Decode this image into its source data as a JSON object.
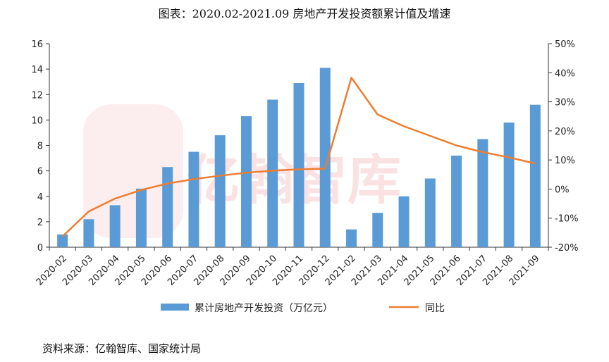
{
  "title": "图表：2020.02-2021.09 房地产开发投资额累计值及增速",
  "source": "资料来源：亿翰智库、国家统计局",
  "watermark": "亿翰智库",
  "chart_data": {
    "type": "bar",
    "categories": [
      "2020-02",
      "2020-03",
      "2020-04",
      "2020-05",
      "2020-06",
      "2020-07",
      "2020-08",
      "2020-09",
      "2020-10",
      "2020-11",
      "2020-12",
      "2021-02",
      "2021-03",
      "2021-04",
      "2021-05",
      "2021-06",
      "2021-07",
      "2021-08",
      "2021-09"
    ],
    "series": [
      {
        "name": "累计房地产开发投资（万亿元）",
        "type": "bar",
        "axis": "left",
        "color": "#5b9bd5",
        "values": [
          1.0,
          2.2,
          3.3,
          4.6,
          6.3,
          7.5,
          8.8,
          10.3,
          11.6,
          12.9,
          14.1,
          1.4,
          2.7,
          4.0,
          5.4,
          7.2,
          8.5,
          9.8,
          11.2
        ]
      },
      {
        "name": "同比",
        "type": "line",
        "axis": "right",
        "color": "#ed7d31",
        "values": [
          -16.3,
          -7.7,
          -3.3,
          -0.3,
          1.9,
          3.4,
          4.6,
          5.6,
          6.3,
          6.8,
          7.0,
          38.3,
          25.6,
          21.6,
          18.3,
          15.0,
          12.7,
          10.9,
          8.8
        ]
      }
    ],
    "left_axis": {
      "min": 0,
      "max": 16,
      "step": 2,
      "ticks": [
        "0",
        "2",
        "4",
        "6",
        "8",
        "10",
        "12",
        "14",
        "16"
      ]
    },
    "right_axis": {
      "min": -20,
      "max": 50,
      "step": 10,
      "ticks": [
        "-20%",
        "-10%",
        "0%",
        "10%",
        "20%",
        "30%",
        "40%",
        "50%"
      ]
    },
    "legend": {
      "placement": "bottom",
      "bar_label": "累计房地产开发投资（万亿元）",
      "line_label": "同比"
    }
  }
}
